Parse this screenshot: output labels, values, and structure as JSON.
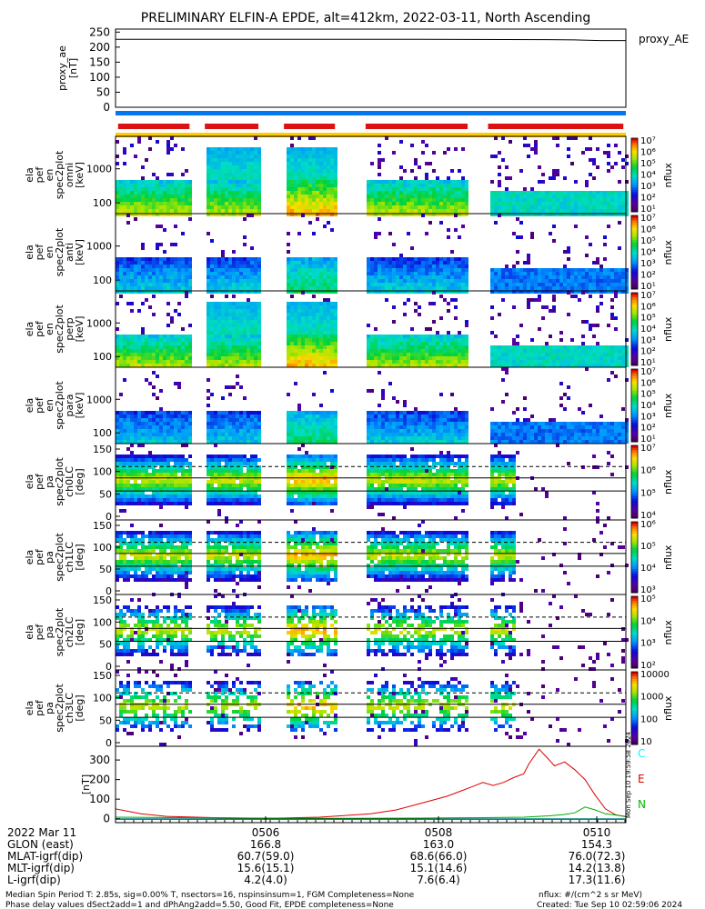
{
  "chart_data": {
    "type": "heatmap",
    "title": "PRELIMINARY ELFIN-A EPDE, alt=412km, 2022-03-11, North Ascending",
    "time_ticks": [
      "0506",
      "0508",
      "0510"
    ],
    "side_label": "Mon Sep 10 19:59:58 2024",
    "panels": [
      {
        "kind": "line",
        "ylabel": [
          "proxy_ae",
          "[nT]"
        ],
        "ylim": [
          0,
          260
        ],
        "yticks": [
          "250",
          "200",
          "150",
          "100",
          "50",
          "0"
        ],
        "legend": [
          "proxy_AE"
        ],
        "series": [
          {
            "name": "proxy_AE",
            "color": "#000000",
            "x": [
              0.0,
              0.3,
              0.6,
              0.85,
              0.9,
              0.95,
              1.0
            ],
            "y": [
              226,
              226,
              226,
              225,
              224,
              222,
              222
            ]
          }
        ]
      },
      {
        "kind": "spec",
        "ylabel": [
          "ela",
          "pef",
          "en",
          "spec2plot",
          "omni",
          "[keV]"
        ],
        "yticks": [
          "1000",
          "100"
        ],
        "zlabel": "nflux",
        "zticks": [
          "10⁷",
          "10⁶",
          "10⁵",
          "10⁴",
          "10³",
          "10²",
          "10¹"
        ]
      },
      {
        "kind": "spec",
        "ylabel": [
          "ela",
          "pef",
          "en",
          "spec2plot",
          "anti",
          "[keV]"
        ],
        "yticks": [
          "1000",
          "100"
        ],
        "zlabel": "nflux",
        "zticks": [
          "10⁷",
          "10⁶",
          "10⁵",
          "10⁴",
          "10³",
          "10²",
          "10¹"
        ]
      },
      {
        "kind": "spec",
        "ylabel": [
          "ela",
          "pef",
          "en",
          "spec2plot",
          "perp",
          "[keV]"
        ],
        "yticks": [
          "1000",
          "100"
        ],
        "zlabel": "nflux",
        "zticks": [
          "10⁷",
          "10⁶",
          "10⁵",
          "10⁴",
          "10³",
          "10²",
          "10¹"
        ]
      },
      {
        "kind": "spec",
        "ylabel": [
          "ela",
          "pef",
          "en",
          "spec2plot",
          "para",
          "[keV]"
        ],
        "yticks": [
          "1000",
          "100"
        ],
        "zlabel": "nflux",
        "zticks": [
          "10⁷",
          "10⁶",
          "10⁵",
          "10⁴",
          "10³",
          "10²",
          "10¹"
        ]
      },
      {
        "kind": "pa",
        "ylabel": [
          "ela",
          "pef",
          "pa",
          "spec2plot",
          "ch0LC",
          "[deg]"
        ],
        "yticks": [
          "150",
          "100",
          "50",
          "0"
        ],
        "zlabel": "nflux",
        "zticks": [
          "10⁷",
          "10⁶",
          "10⁵",
          "10⁴"
        ]
      },
      {
        "kind": "pa",
        "ylabel": [
          "ela",
          "pef",
          "pa",
          "spec2plot",
          "ch1LC",
          "[deg]"
        ],
        "yticks": [
          "150",
          "100",
          "50",
          "0"
        ],
        "zlabel": "nflux",
        "zticks": [
          "10⁶",
          "10⁵",
          "10⁴",
          "10³"
        ]
      },
      {
        "kind": "pa",
        "ylabel": [
          "ela",
          "pef",
          "pa",
          "spec2plot",
          "ch2LC",
          "[deg]"
        ],
        "yticks": [
          "150",
          "100",
          "50",
          "0"
        ],
        "zlabel": "nflux",
        "zticks": [
          "10⁵",
          "10⁴",
          "10³",
          "10²"
        ]
      },
      {
        "kind": "pa",
        "ylabel": [
          "ela",
          "pef",
          "pa",
          "spec2plot",
          "ch3LC",
          "[deg]"
        ],
        "yticks": [
          "150",
          "100",
          "50",
          "0"
        ],
        "zlabel": "nflux",
        "zticks": [
          "10000",
          "1000",
          "100",
          "10"
        ]
      },
      {
        "kind": "line",
        "ylabel": [
          "[nT]"
        ],
        "ylim": [
          -20,
          370
        ],
        "yticks": [
          "300",
          "200",
          "100",
          "0"
        ],
        "legend": [
          "C",
          "E",
          "N"
        ],
        "series": [
          {
            "name": "C",
            "color": "#00ffff",
            "x": [
              0.0,
              1.0
            ],
            "y": [
              0,
              0
            ]
          },
          {
            "name": "E",
            "color": "#dd0000",
            "x": [
              0.0,
              0.05,
              0.1,
              0.2,
              0.3,
              0.4,
              0.5,
              0.55,
              0.6,
              0.65,
              0.7,
              0.72,
              0.74,
              0.76,
              0.78,
              0.8,
              0.81,
              0.83,
              0.85,
              0.86,
              0.88,
              0.9,
              0.92,
              0.94,
              0.96,
              0.98,
              1.0
            ],
            "y": [
              50,
              25,
              12,
              5,
              2,
              8,
              25,
              45,
              80,
              115,
              165,
              185,
              170,
              185,
              210,
              230,
              280,
              355,
              300,
              270,
              290,
              250,
              200,
              120,
              50,
              20,
              10
            ]
          },
          {
            "name": "N",
            "color": "#00aa00",
            "x": [
              0.0,
              0.2,
              0.4,
              0.6,
              0.7,
              0.8,
              0.85,
              0.88,
              0.9,
              0.92,
              0.94,
              0.96,
              1.0
            ],
            "y": [
              8,
              4,
              2,
              3,
              5,
              8,
              15,
              22,
              30,
              60,
              45,
              25,
              12
            ]
          },
          {
            "name": "baseline",
            "color": "#000000",
            "x": [
              0.0,
              1.0
            ],
            "y": [
              -2,
              -2
            ]
          }
        ]
      }
    ],
    "spin_bars": {
      "blue": [
        [
          0.0,
          1.0
        ]
      ],
      "red": [
        [
          0.005,
          0.145
        ],
        [
          0.175,
          0.28
        ],
        [
          0.33,
          0.43
        ],
        [
          0.49,
          0.69
        ],
        [
          0.73,
          0.995
        ]
      ],
      "yellow": [
        [
          0.0,
          1.0
        ]
      ]
    },
    "data_gaps": [
      [
        0.0,
        0.0
      ],
      [
        0.145,
        0.175
      ],
      [
        0.28,
        0.33
      ],
      [
        0.43,
        0.49
      ],
      [
        0.69,
        0.73
      ]
    ]
  },
  "footer": {
    "row_labels": [
      "2022 Mar 11",
      "GLON (east)",
      "MLAT-igrf(dip)",
      "MLT-igrf(dip)",
      "L-igrf(dip)"
    ],
    "col1": [
      "0506",
      "166.8",
      "60.7(59.0)",
      "15.6(15.1)",
      "4.2(4.0)"
    ],
    "col2": [
      "0508",
      "163.0",
      "68.6(66.0)",
      "15.1(14.6)",
      "7.6(6.4)"
    ],
    "col3": [
      "0510",
      "154.3",
      "76.0(72.3)",
      "14.2(13.8)",
      "17.3(11.6)"
    ],
    "note_line1": "Median Spin Period T: 2.85s, sig=0.00% T, nsectors=16, nspinsinsum=1, FGM Completeness=None",
    "note_line2": "Phase delay values dSect2add=1 and dPhAng2add=5.50, Good Fit, EPDE completeness=None",
    "units": "nflux: #/(cm^2 s sr MeV)",
    "created": "Created: Tue Sep 10 02:59:06 2024"
  },
  "colors": {
    "red": "#dd1111",
    "blue": "#0077ee",
    "yellow": "#ffcc00"
  }
}
